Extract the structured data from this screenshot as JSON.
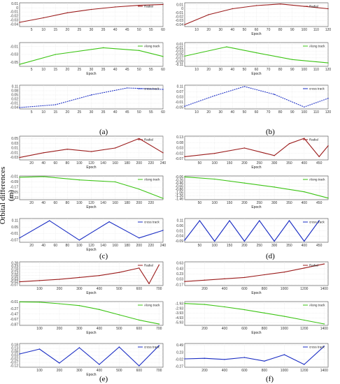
{
  "figure": {
    "ylabel": "Orbital differences (m)",
    "panel_labels": [
      "(a)",
      "(b)",
      "(c)",
      "(d)",
      "(e)",
      "(f)"
    ]
  },
  "colors": {
    "radial": "#9b1c1c",
    "along": "#3cc414",
    "cross": "#1a2dc4"
  },
  "chart_data": [
    {
      "panel": "(a)",
      "component": "Radial",
      "type": "line",
      "xlabel": "",
      "xlim": [
        0,
        60
      ],
      "xticks": [
        5,
        10,
        15,
        20,
        25,
        30,
        35,
        40,
        45,
        50,
        55,
        60
      ],
      "yticks": [
        0.01,
        0,
        -0.01,
        -0.02,
        -0.03,
        -0.04
      ],
      "ylim": [
        -0.045,
        0.012
      ],
      "series": [
        {
          "name": "Radial",
          "x": [
            0,
            10,
            20,
            30,
            40,
            50,
            60
          ],
          "y": [
            -0.035,
            -0.024,
            -0.012,
            -0.004,
            0.002,
            0.006,
            0.008
          ]
        }
      ]
    },
    {
      "panel": "(b)",
      "component": "Radial",
      "type": "line",
      "xlabel": "Epoch",
      "xlim": [
        0,
        120
      ],
      "xticks": [
        10,
        20,
        30,
        40,
        50,
        60,
        70,
        80,
        90,
        100,
        110,
        120
      ],
      "yticks": [
        0.01,
        0,
        -0.01,
        -0.02,
        -0.03,
        -0.04
      ],
      "ylim": [
        -0.045,
        0.015
      ],
      "series": [
        {
          "name": "Radial",
          "x": [
            0,
            20,
            40,
            60,
            80,
            100,
            120
          ],
          "y": [
            -0.04,
            -0.015,
            0.0,
            0.008,
            0.012,
            0.006,
            0.0
          ]
        }
      ]
    },
    {
      "panel": "(a)",
      "component": "Along track",
      "type": "line",
      "xlabel": "Epoch",
      "xlim": [
        0,
        60
      ],
      "xticks": [
        5,
        10,
        15,
        20,
        25,
        30,
        35,
        40,
        45,
        50,
        55,
        60
      ],
      "yticks": [
        -0.01,
        -0.03,
        -0.05
      ],
      "ylim": [
        -0.06,
        0.0
      ],
      "series": [
        {
          "name": "Along track",
          "x": [
            0,
            15,
            35,
            50,
            60
          ],
          "y": [
            -0.055,
            -0.03,
            -0.013,
            -0.02,
            -0.035
          ]
        }
      ]
    },
    {
      "panel": "(b)",
      "component": "Along track",
      "type": "line",
      "xlabel": "Epoch",
      "xlim": [
        0,
        120
      ],
      "xticks": [
        10,
        20,
        30,
        40,
        50,
        60,
        70,
        80,
        90,
        100,
        110,
        120
      ],
      "yticks": [
        0.01,
        -0.01,
        -0.03,
        -0.05,
        -0.07,
        -0.09,
        -0.11
      ],
      "ylim": [
        -0.12,
        0.02
      ],
      "series": [
        {
          "name": "Along track",
          "x": [
            0,
            35,
            60,
            90,
            120
          ],
          "y": [
            -0.06,
            -0.005,
            -0.04,
            -0.08,
            -0.1
          ]
        }
      ]
    },
    {
      "panel": "(a)",
      "component": "cross track",
      "type": "line",
      "xlabel": "",
      "xlim": [
        0,
        60
      ],
      "xticks": [
        5,
        10,
        15,
        20,
        25,
        30,
        35,
        40,
        45,
        50,
        55,
        60
      ],
      "yticks": [
        0.11,
        0.08,
        0.05,
        0.02,
        -0.01,
        -0.04
      ],
      "ylim": [
        -0.05,
        0.12
      ],
      "series": [
        {
          "name": "cross track",
          "x": [
            0,
            15,
            30,
            45,
            60
          ],
          "y": [
            -0.04,
            -0.02,
            0.05,
            0.1,
            0.09
          ]
        }
      ]
    },
    {
      "panel": "(b)",
      "component": "cross track",
      "type": "line",
      "xlabel": "",
      "xlim": [
        0,
        120
      ],
      "xticks": [
        10,
        20,
        30,
        40,
        50,
        60,
        70,
        80,
        90,
        100,
        110,
        120
      ],
      "yticks": [
        0.11,
        0.07,
        0.03,
        -0.01,
        -0.05
      ],
      "ylim": [
        -0.06,
        0.12
      ],
      "series": [
        {
          "name": "cross track",
          "x": [
            0,
            25,
            50,
            75,
            100,
            120
          ],
          "y": [
            -0.04,
            0.04,
            0.11,
            0.05,
            -0.045,
            0.02
          ]
        }
      ]
    },
    {
      "panel": "(c)",
      "component": "Radial",
      "type": "line",
      "xlabel": "Epoch",
      "xlim": [
        0,
        240
      ],
      "xticks": [
        20,
        40,
        60,
        80,
        100,
        120,
        140,
        160,
        180,
        200,
        220,
        240
      ],
      "yticks": [
        0.05,
        0.03,
        0.01,
        -0.01,
        -0.03
      ],
      "ylim": [
        -0.04,
        0.06
      ],
      "series": [
        {
          "name": "Radial",
          "x": [
            0,
            40,
            80,
            120,
            160,
            200,
            240
          ],
          "y": [
            -0.03,
            -0.01,
            0.005,
            -0.005,
            0.01,
            0.05,
            -0.01
          ]
        }
      ]
    },
    {
      "panel": "(d)",
      "component": "Radial",
      "type": "line",
      "xlabel": "Epoch",
      "xlim": [
        0,
        480
      ],
      "xticks": [
        50,
        100,
        150,
        200,
        250,
        300,
        350,
        400,
        450
      ],
      "yticks": [
        0.13,
        0.08,
        0.03,
        -0.02,
        -0.07
      ],
      "ylim": [
        -0.08,
        0.14
      ],
      "series": [
        {
          "name": "Radial",
          "x": [
            0,
            100,
            200,
            300,
            350,
            400,
            450,
            480
          ],
          "y": [
            -0.05,
            -0.02,
            0.03,
            -0.04,
            0.07,
            0.12,
            -0.05,
            0.05
          ]
        }
      ]
    },
    {
      "panel": "(c)",
      "component": "Along track",
      "type": "line",
      "xlabel": "Epoch",
      "xlim": [
        0,
        240
      ],
      "xticks": [
        20,
        40,
        60,
        80,
        100,
        120,
        140,
        160,
        180,
        200,
        220
      ],
      "yticks": [
        -0.01,
        -0.09,
        -0.17,
        -0.25,
        -0.33
      ],
      "ylim": [
        -0.36,
        0.0
      ],
      "series": [
        {
          "name": "Along track",
          "x": [
            0,
            40,
            100,
            160,
            200,
            240
          ],
          "y": [
            -0.02,
            -0.01,
            -0.06,
            -0.09,
            -0.2,
            -0.34
          ]
        }
      ]
    },
    {
      "panel": "(d)",
      "component": "Along track",
      "type": "line",
      "xlabel": "Epoch",
      "xlim": [
        0,
        480
      ],
      "xticks": [
        50,
        100,
        150,
        200,
        250,
        300,
        350,
        400,
        450
      ],
      "yticks": [
        -0.06,
        -0.26,
        -0.46,
        -0.66,
        -0.86,
        -1.06,
        -1.26,
        -1.46
      ],
      "ylim": [
        -1.5,
        0.0
      ],
      "series": [
        {
          "name": "Along track",
          "x": [
            0,
            100,
            200,
            300,
            400,
            480
          ],
          "y": [
            -0.06,
            -0.2,
            -0.45,
            -0.7,
            -1.0,
            -1.4
          ]
        }
      ]
    },
    {
      "panel": "(c)",
      "component": "cross track",
      "type": "line",
      "xlabel": "Epoch",
      "xlim": [
        0,
        240
      ],
      "xticks": [
        20,
        40,
        60,
        80,
        100,
        120,
        140,
        160,
        180,
        200,
        220,
        240
      ],
      "yticks": [
        0.11,
        0.05,
        -0.01,
        -0.07
      ],
      "ylim": [
        -0.09,
        0.13
      ],
      "series": [
        {
          "name": "cross track",
          "x": [
            0,
            50,
            100,
            150,
            200,
            240
          ],
          "y": [
            -0.05,
            0.11,
            -0.07,
            0.1,
            -0.05,
            0.02
          ]
        }
      ]
    },
    {
      "panel": "(d)",
      "component": "cross track",
      "type": "line",
      "xlabel": "",
      "xlim": [
        0,
        480
      ],
      "xticks": [
        50,
        100,
        150,
        200,
        250,
        300,
        350,
        400,
        450
      ],
      "yticks": [
        0.11,
        0.06,
        0.01,
        -0.04,
        -0.09
      ],
      "ylim": [
        -0.1,
        0.13
      ],
      "series": [
        {
          "name": "cross track",
          "x": [
            0,
            50,
            100,
            150,
            200,
            250,
            300,
            350,
            400,
            450
          ],
          "y": [
            -0.08,
            0.11,
            -0.09,
            0.11,
            -0.09,
            0.11,
            -0.09,
            0.11,
            -0.09,
            0.11
          ]
        }
      ]
    },
    {
      "panel": "(e)",
      "component": "Radial",
      "type": "line",
      "xlabel": "Epoch",
      "xlim": [
        0,
        720
      ],
      "xticks": [
        100,
        200,
        300,
        400,
        500,
        600,
        700
      ],
      "yticks": [
        0.28,
        0.23,
        0.18,
        0.13,
        0.08,
        0.03,
        -0.02,
        -0.07
      ],
      "ylim": [
        -0.08,
        0.3
      ],
      "series": [
        {
          "name": "Radial",
          "x": [
            0,
            100,
            200,
            300,
            400,
            500,
            600,
            650,
            700
          ],
          "y": [
            -0.02,
            0.0,
            0.02,
            0.05,
            0.08,
            0.13,
            0.2,
            -0.05,
            0.25
          ]
        }
      ]
    },
    {
      "panel": "(f)",
      "component": "Radial",
      "type": "line",
      "xlabel": "Epoch",
      "xlim": [
        0,
        1440
      ],
      "xticks": [
        200,
        400,
        600,
        800,
        1000,
        1200,
        1400
      ],
      "yticks": [
        0.63,
        0.43,
        0.23,
        0.03,
        -0.17
      ],
      "ylim": [
        -0.2,
        0.68
      ],
      "series": [
        {
          "name": "Radial",
          "x": [
            0,
            200,
            400,
            600,
            800,
            1000,
            1200,
            1400
          ],
          "y": [
            -0.05,
            0.0,
            0.05,
            0.1,
            0.2,
            0.3,
            0.45,
            0.6
          ]
        }
      ]
    },
    {
      "panel": "(e)",
      "component": "Along track",
      "type": "line",
      "xlabel": "Epoch",
      "xlim": [
        0,
        720
      ],
      "xticks": [
        100,
        200,
        300,
        400,
        500,
        600,
        700
      ],
      "yticks": [
        -0.01,
        -0.27,
        -0.47,
        -0.67,
        -0.87
      ],
      "ylim": [
        -0.9,
        0.0
      ],
      "series": [
        {
          "name": "Along track",
          "x": [
            0,
            100,
            200,
            300,
            400,
            500,
            600,
            700
          ],
          "y": [
            -0.01,
            -0.02,
            -0.08,
            -0.15,
            -0.3,
            -0.5,
            -0.7,
            -0.85
          ]
        }
      ]
    },
    {
      "panel": "(f)",
      "component": "Along track",
      "type": "line",
      "xlabel": "Epoch",
      "xlim": [
        0,
        1440
      ],
      "xticks": [
        200,
        400,
        600,
        800,
        1000,
        1200,
        1400
      ],
      "yticks": [
        -1.93,
        -2.93,
        -3.93,
        -4.93,
        -5.93
      ],
      "ylim": [
        -6.5,
        -1.5
      ],
      "series": [
        {
          "name": "Along track",
          "x": [
            0,
            200,
            400,
            600,
            800,
            1000,
            1200,
            1400
          ],
          "y": [
            -1.9,
            -2.1,
            -2.6,
            -3.2,
            -3.9,
            -4.6,
            -5.4,
            -6.2
          ]
        }
      ]
    },
    {
      "panel": "(e)",
      "component": "cross track",
      "type": "line",
      "xlabel": "Epoch",
      "xlim": [
        0,
        720
      ],
      "xticks": [
        100,
        200,
        300,
        400,
        500,
        600,
        700
      ],
      "yticks": [
        0.18,
        0.13,
        0.08,
        0.03,
        -0.02,
        -0.07,
        -0.12
      ],
      "ylim": [
        -0.14,
        0.2
      ],
      "series": [
        {
          "name": "cross track",
          "x": [
            0,
            100,
            200,
            300,
            400,
            500,
            600,
            700
          ],
          "y": [
            0.05,
            0.12,
            -0.08,
            0.14,
            -0.1,
            0.15,
            -0.12,
            0.17
          ]
        }
      ]
    },
    {
      "panel": "(f)",
      "component": "cross track",
      "type": "line",
      "xlabel": "",
      "xlim": [
        0,
        1440
      ],
      "xticks": [
        200,
        400,
        600,
        800,
        1000,
        1200,
        1400
      ],
      "yticks": [
        0.49,
        0.23,
        -0.02,
        -0.27
      ],
      "ylim": [
        -0.3,
        0.55
      ],
      "series": [
        {
          "name": "cross track",
          "x": [
            0,
            200,
            400,
            600,
            800,
            1000,
            1200,
            1400
          ],
          "y": [
            0.0,
            0.02,
            -0.02,
            0.05,
            -0.08,
            0.15,
            -0.2,
            0.45
          ]
        }
      ]
    }
  ]
}
